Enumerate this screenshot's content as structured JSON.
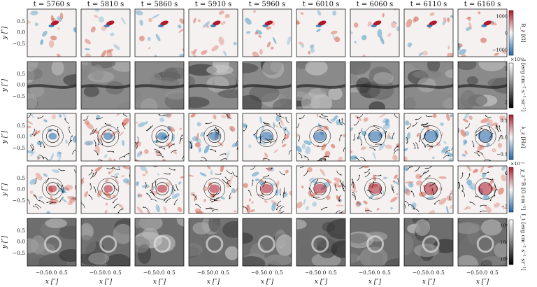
{
  "figure": {
    "times": [
      "t = 5760 s",
      "t = 5810 s",
      "t = 5860 s",
      "t = 5910 s",
      "t = 5960 s",
      "t = 6010 s",
      "t = 6060 s",
      "t = 6110 s",
      "t = 6160 s"
    ],
    "y_axis_label": "y [″]",
    "x_axis_label": "x [″]",
    "y_ticks": [
      "0.5",
      "0.0",
      "−0.5"
    ],
    "x_ticks": [
      "−0.5",
      "0.0",
      "0.5"
    ],
    "rows": [
      {
        "name": "bz",
        "colorbar_label": "B_z [G]",
        "colorbar_ticks": [
          "1000",
          "0",
          "−1000"
        ],
        "exponent": "",
        "scheme": "diverging",
        "content": "field"
      },
      {
        "name": "intensity",
        "colorbar_label": "I [erg cm⁻² s⁻¹ sr⁻¹]",
        "colorbar_ticks": [
          "3",
          "2"
        ],
        "exponent": "×10¹⁰",
        "scheme": "gray",
        "content": "granules"
      },
      {
        "name": "lambda",
        "colorbar_label": "λ_z [Hz]",
        "colorbar_ticks": [
          "0.1",
          "0.0",
          "−0.1"
        ],
        "exponent": "",
        "scheme": "diverging",
        "content": "streams"
      },
      {
        "name": "chi",
        "colorbar_label": "χ_z^B [G cm⁻¹]",
        "colorbar_ticks": [
          "0",
          "−2"
        ],
        "exponent": "×10⁻⁵",
        "scheme": "diverging",
        "content": "streams"
      },
      {
        "name": "integrated",
        "colorbar_label": "I_t [erg cm⁻² s⁻¹ sr⁻¹]",
        "colorbar_ticks": [
          "10⁸",
          "10⁷",
          "10⁶"
        ],
        "exponent": "",
        "scheme": "gray",
        "content": "swirl"
      }
    ],
    "colors": {
      "red": "#b2182b",
      "blue": "#2166ac",
      "white": "#f7f7f7",
      "black": "#000000"
    }
  }
}
